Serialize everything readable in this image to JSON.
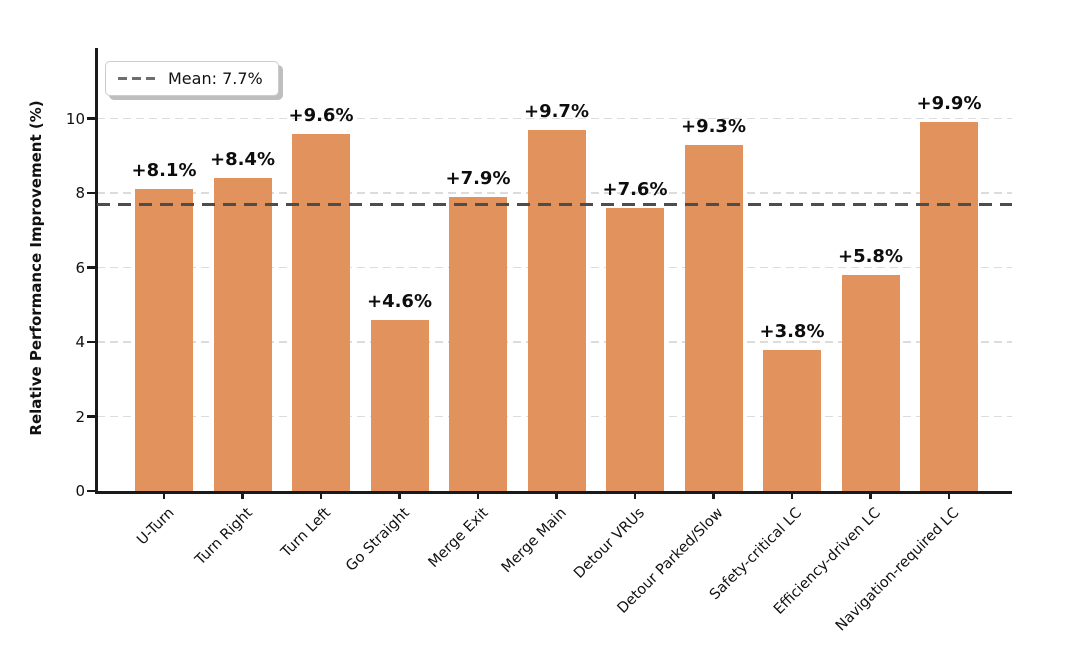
{
  "figure": {
    "background": "#ffffff"
  },
  "chart_data": {
    "type": "bar",
    "title": "",
    "xlabel": "",
    "ylabel": "Relative Performance Improvement (%)",
    "categories": [
      "U-Turn",
      "Turn Right",
      "Turn Left",
      "Go Straight",
      "Merge Exit",
      "Merge Main",
      "Detour VRUs",
      "Detour Parked/Slow",
      "Safety-critical LC",
      "Efficiency-driven LC",
      "Navigation-required LC"
    ],
    "values": [
      8.1,
      8.4,
      9.6,
      4.6,
      7.9,
      9.7,
      7.6,
      9.3,
      3.8,
      5.8,
      9.9
    ],
    "bar_labels": [
      "+8.1%",
      "+8.4%",
      "+9.6%",
      "+4.6%",
      "+7.9%",
      "+9.7%",
      "+7.6%",
      "+9.3%",
      "+3.8%",
      "+5.8%",
      "+9.9%"
    ],
    "mean_value": 7.7,
    "legend_label": "Mean: 7.7%",
    "yticks": [
      0,
      2,
      4,
      6,
      8,
      10
    ],
    "ylim": [
      0,
      11.9
    ],
    "grid": true,
    "legend_position": "upper left",
    "bar_color": "#E2925C",
    "mean_line_color": "#4d4d4d",
    "grid_color": "#dcdcdc"
  }
}
